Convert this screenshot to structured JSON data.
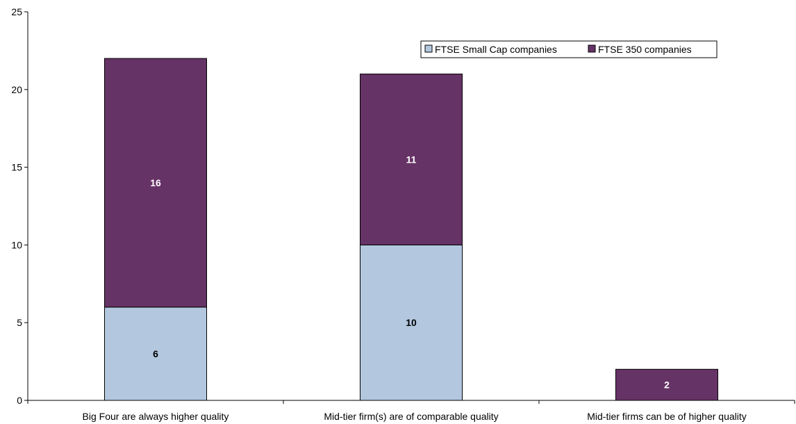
{
  "chart_data": {
    "type": "bar",
    "stacked": true,
    "title": "",
    "xlabel": "",
    "ylabel": "",
    "ylim": [
      0,
      25
    ],
    "yticks": [
      0,
      5,
      10,
      15,
      20,
      25
    ],
    "grid": false,
    "legend_position": "top-right",
    "categories": [
      "Big Four are always higher quality",
      "Mid-tier firm(s) are of comparable quality",
      "Mid-tier firms can be of higher quality"
    ],
    "series": [
      {
        "name": "FTSE Small Cap companies",
        "values": [
          6,
          10,
          0
        ],
        "color": "#b3c8df",
        "label_color": "#000000"
      },
      {
        "name": "FTSE 350 companies",
        "values": [
          16,
          11,
          2
        ],
        "color": "#663366",
        "label_color": "#ffffff"
      }
    ]
  }
}
